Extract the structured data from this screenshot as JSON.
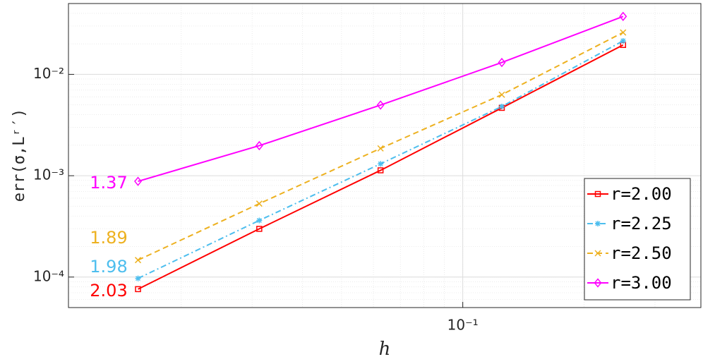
{
  "chart_data": {
    "type": "line",
    "xlabel": "h",
    "ylabel": "err(σ,Lʳ′)",
    "x": [
      0.015625,
      0.03125,
      0.0625,
      0.125,
      0.25
    ],
    "xscale": "log",
    "yscale": "log",
    "xlim": [
      0.0105,
      0.39
    ],
    "ylim": [
      5e-05,
      0.05
    ],
    "xticks": [
      {
        "value": 0.1,
        "label": "10⁻¹"
      }
    ],
    "yticks": [
      {
        "value": 0.0001,
        "label": "10⁻⁴"
      },
      {
        "value": 0.001,
        "label": "10⁻³"
      },
      {
        "value": 0.01,
        "label": "10⁻²"
      }
    ],
    "grid": true,
    "minor_grid": true,
    "legend": "lower right",
    "series": [
      {
        "name": "r=2.00",
        "color": "#ff0000",
        "dash": "solid",
        "marker": "square",
        "values": [
          7.6e-05,
          0.000299,
          0.00113,
          0.00467,
          0.0195
        ]
      },
      {
        "name": "r=2.25",
        "color": "#4dbeee",
        "dash": "dashdot",
        "marker": "asterisk",
        "values": [
          9.7e-05,
          0.000362,
          0.00131,
          0.00482,
          0.0214
        ]
      },
      {
        "name": "r=2.50",
        "color": "#edb120",
        "dash": "dashed",
        "marker": "x",
        "values": [
          0.000147,
          0.00053,
          0.00186,
          0.0063,
          0.0259
        ]
      },
      {
        "name": "r=3.00",
        "color": "#ff00ff",
        "dash": "solid",
        "marker": "diamond",
        "values": [
          0.00088,
          0.00198,
          0.00498,
          0.0131,
          0.0373
        ]
      }
    ],
    "annotations": [
      {
        "text": "1.37",
        "color": "#ff00ff"
      },
      {
        "text": "1.89",
        "color": "#edb120"
      },
      {
        "text": "1.98",
        "color": "#4dbeee"
      },
      {
        "text": "2.03",
        "color": "#ff0000"
      }
    ]
  }
}
